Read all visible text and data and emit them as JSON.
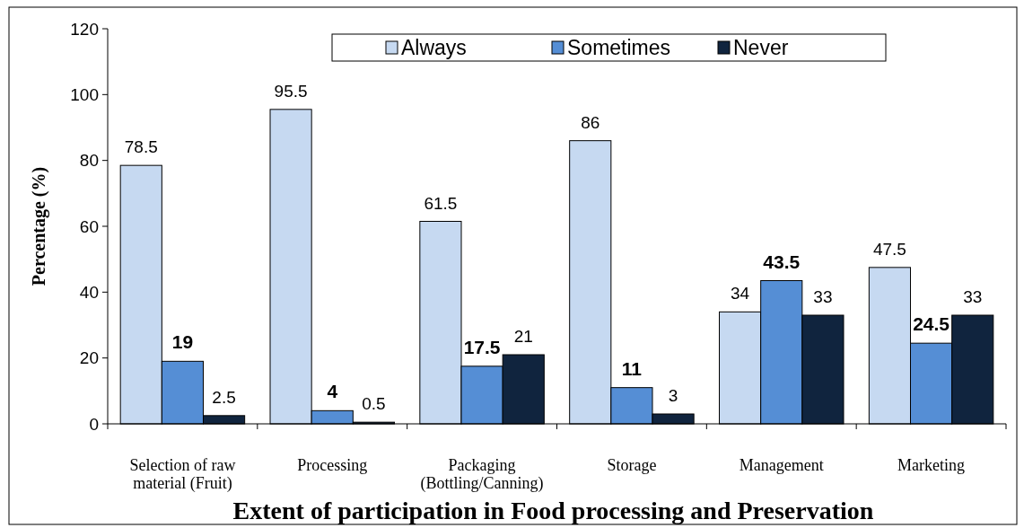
{
  "chart_data": {
    "type": "bar",
    "title": "Extent of participation in Food processing and Preservation",
    "ylabel": "Percentage (%)",
    "categories": [
      "Selection of raw\nmaterial (Fruit)",
      "Processing",
      "Packaging\n(Bottling/Canning)",
      "Storage",
      "Management",
      "Marketing"
    ],
    "series": [
      {
        "name": "Always",
        "color": "#c6d9f1",
        "values": [
          78.5,
          95.5,
          61.5,
          86,
          34,
          47.5
        ]
      },
      {
        "name": "Sometimes",
        "color": "#558ed5",
        "values": [
          19,
          4,
          17.5,
          11,
          43.5,
          24.5
        ]
      },
      {
        "name": "Never",
        "color": "#10243e",
        "values": [
          2.5,
          0.5,
          21,
          3,
          33,
          33
        ]
      }
    ],
    "ylim": [
      0,
      120
    ],
    "yticks": [
      0,
      20,
      40,
      60,
      80,
      100,
      120
    ],
    "grid": false,
    "legend": "top",
    "data_labels": true
  }
}
